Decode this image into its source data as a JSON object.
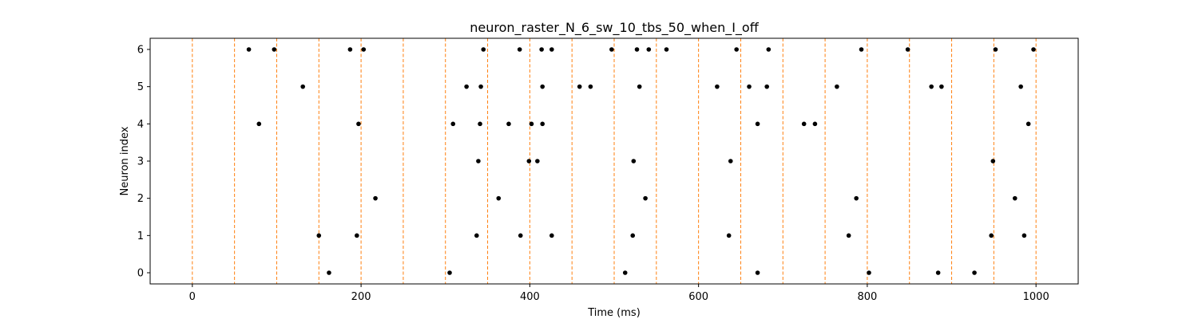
{
  "chart_data": {
    "type": "scatter",
    "title": "neuron_raster_N_6_sw_10_tbs_50_when_I_off",
    "xlabel": "Time (ms)",
    "ylabel": "Neuron index",
    "xlim": [
      -50,
      1050
    ],
    "ylim": [
      -0.3,
      6.3
    ],
    "xticks": [
      0,
      200,
      400,
      600,
      800,
      1000
    ],
    "yticks": [
      0,
      1,
      2,
      3,
      4,
      5,
      6
    ],
    "grid": false,
    "marker_color": "#000000",
    "vline_color": "#ff7f0e",
    "vline_style": "dashed",
    "vlines": [
      0,
      50,
      100,
      150,
      200,
      250,
      300,
      350,
      400,
      450,
      500,
      550,
      600,
      650,
      700,
      750,
      800,
      850,
      900,
      950,
      1000
    ],
    "spikes": [
      {
        "neuron": 6,
        "times": [
          67,
          97,
          187,
          203,
          345,
          388,
          414,
          426,
          497,
          527,
          541,
          562,
          645,
          683,
          793,
          848,
          952,
          997
        ]
      },
      {
        "neuron": 5,
        "times": [
          131,
          325,
          342,
          415,
          459,
          472,
          530,
          622,
          660,
          681,
          764,
          876,
          888,
          982
        ]
      },
      {
        "neuron": 4,
        "times": [
          79,
          197,
          309,
          341,
          375,
          402,
          415,
          670,
          725,
          738,
          991
        ]
      },
      {
        "neuron": 3,
        "times": [
          339,
          399,
          409,
          523,
          638,
          949
        ]
      },
      {
        "neuron": 2,
        "times": [
          217,
          363,
          537,
          787,
          975
        ]
      },
      {
        "neuron": 1,
        "times": [
          150,
          195,
          337,
          389,
          426,
          522,
          636,
          778,
          947,
          986
        ]
      },
      {
        "neuron": 0,
        "times": [
          162,
          305,
          513,
          670,
          802,
          884,
          927
        ]
      }
    ]
  }
}
